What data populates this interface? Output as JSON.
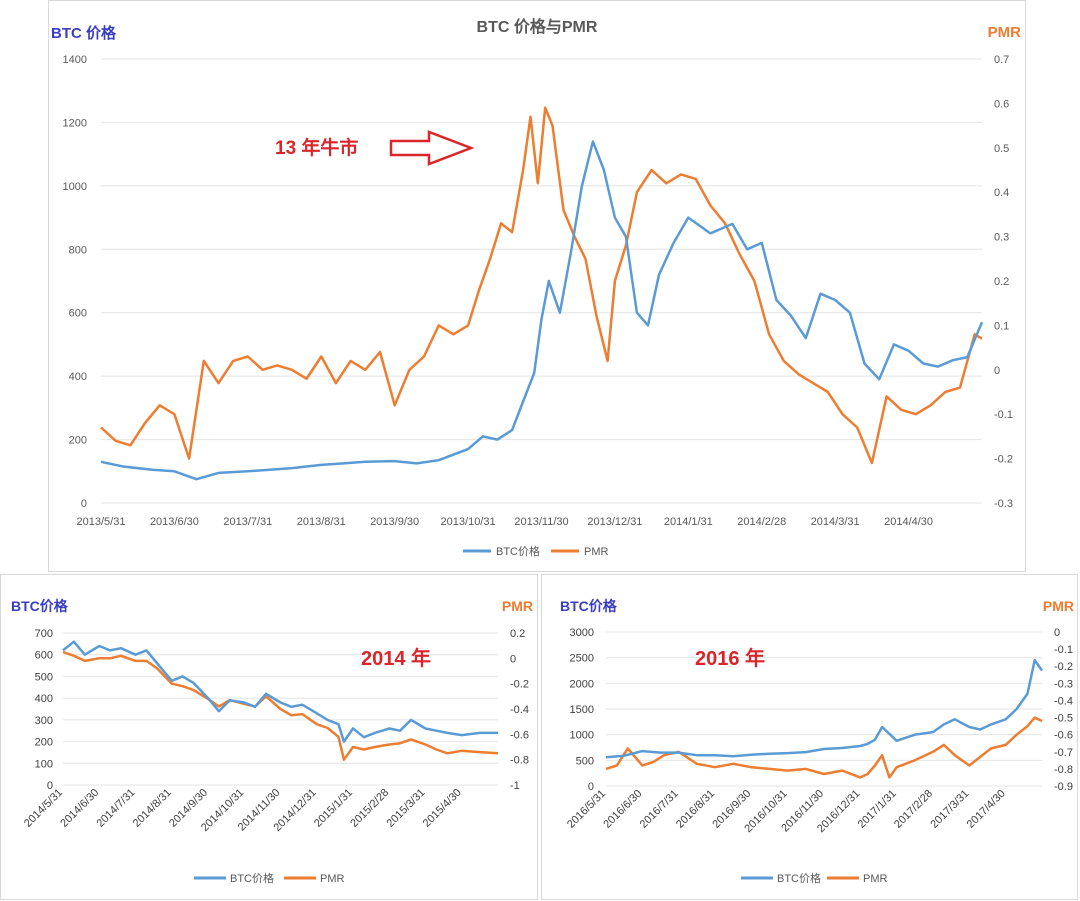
{
  "colors": {
    "btc": "#5b9bd5",
    "pmr": "#ed7d31",
    "left_label": "#3a3fbf",
    "annotation": "#d9262b",
    "grid": "#e4e4e4"
  },
  "chart_data": [
    {
      "type": "line",
      "title": "BTC 价格与PMR",
      "ylabel_left": "BTC 价格",
      "ylabel_right": "PMR",
      "annotation": "13 年牛市",
      "legend_position": "bottom",
      "ylim_left": [
        0,
        1400
      ],
      "ylim_right": [
        -0.3,
        0.7
      ],
      "yticks_left": [
        "0",
        "200",
        "400",
        "600",
        "800",
        "1000",
        "1200",
        "1400"
      ],
      "yticks_right": [
        "-0.3",
        "-0.2",
        "-0.1",
        "0",
        "0.1",
        "0.2",
        "0.3",
        "0.4",
        "0.5",
        "0.6",
        "0.7"
      ],
      "xticks": [
        "2013/5/31",
        "2013/6/30",
        "2013/7/31",
        "2013/8/31",
        "2013/9/30",
        "2013/10/31",
        "2013/11/30",
        "2013/12/31",
        "2014/1/31",
        "2014/2/28",
        "2014/3/31",
        "2014/4/30"
      ],
      "series": [
        {
          "name": "BTC价格",
          "axis": "left",
          "x": [
            0,
            0.3,
            0.7,
            1,
            1.3,
            1.6,
            2,
            2.3,
            2.6,
            3,
            3.3,
            3.6,
            4,
            4.3,
            4.6,
            5,
            5.2,
            5.4,
            5.6,
            5.75,
            5.9,
            6,
            6.1,
            6.25,
            6.4,
            6.55,
            6.7,
            6.85,
            7,
            7.15,
            7.3,
            7.45,
            7.6,
            7.8,
            8,
            8.3,
            8.6,
            8.8,
            9,
            9.2,
            9.4,
            9.6,
            9.8,
            10,
            10.2,
            10.4,
            10.6,
            10.8,
            11,
            11.2,
            11.4,
            11.6,
            11.8,
            12
          ],
          "y": [
            130,
            115,
            105,
            100,
            75,
            95,
            100,
            105,
            110,
            120,
            125,
            130,
            132,
            125,
            135,
            170,
            210,
            200,
            230,
            320,
            410,
            580,
            700,
            600,
            790,
            1000,
            1140,
            1050,
            900,
            840,
            600,
            560,
            720,
            820,
            900,
            850,
            880,
            800,
            820,
            640,
            590,
            520,
            660,
            640,
            600,
            440,
            390,
            500,
            480,
            440,
            430,
            450,
            460,
            570
          ]
        },
        {
          "name": "PMR",
          "axis": "right",
          "x": [
            0,
            0.2,
            0.4,
            0.6,
            0.8,
            1,
            1.2,
            1.4,
            1.6,
            1.8,
            2,
            2.2,
            2.4,
            2.6,
            2.8,
            3,
            3.2,
            3.4,
            3.6,
            3.8,
            4,
            4.2,
            4.4,
            4.6,
            4.8,
            5,
            5.15,
            5.3,
            5.45,
            5.6,
            5.75,
            5.85,
            5.95,
            6.05,
            6.15,
            6.3,
            6.45,
            6.6,
            6.75,
            6.9,
            7,
            7.15,
            7.3,
            7.5,
            7.7,
            7.9,
            8.1,
            8.3,
            8.5,
            8.7,
            8.9,
            9.1,
            9.3,
            9.5,
            9.7,
            9.9,
            10.1,
            10.3,
            10.5,
            10.7,
            10.9,
            11.1,
            11.3,
            11.5,
            11.7,
            11.9,
            12
          ],
          "y": [
            -0.13,
            -0.16,
            -0.17,
            -0.12,
            -0.08,
            -0.1,
            -0.2,
            0.02,
            -0.03,
            0.02,
            0.03,
            0.0,
            0.01,
            0.0,
            -0.02,
            0.03,
            -0.03,
            0.02,
            0.0,
            0.04,
            -0.08,
            0.0,
            0.03,
            0.1,
            0.08,
            0.1,
            0.18,
            0.25,
            0.33,
            0.31,
            0.45,
            0.57,
            0.42,
            0.59,
            0.55,
            0.36,
            0.3,
            0.25,
            0.12,
            0.02,
            0.2,
            0.28,
            0.4,
            0.45,
            0.42,
            0.44,
            0.43,
            0.37,
            0.33,
            0.26,
            0.2,
            0.08,
            0.02,
            -0.01,
            -0.03,
            -0.05,
            -0.1,
            -0.13,
            -0.21,
            -0.06,
            -0.09,
            -0.1,
            -0.08,
            -0.05,
            -0.04,
            0.08,
            0.07
          ]
        }
      ]
    },
    {
      "type": "line",
      "ylabel_left": "BTC价格",
      "ylabel_right": "PMR",
      "annotation": "2014 年",
      "legend_position": "bottom",
      "ylim_left": [
        0,
        700
      ],
      "ylim_right": [
        -1,
        0.2
      ],
      "yticks_left": [
        "0",
        "100",
        "200",
        "300",
        "400",
        "500",
        "600",
        "700"
      ],
      "yticks_right": [
        "-1",
        "-0.8",
        "-0.6",
        "-0.4",
        "-0.2",
        "0",
        "0.2"
      ],
      "xticks": [
        "2014/5/31",
        "2014/6/30",
        "2014/7/31",
        "2014/8/31",
        "2014/9/30",
        "2014/10/31",
        "2014/11/30",
        "2014/12/31",
        "2015/1/31",
        "2015/2/28",
        "2015/3/31",
        "2015/4/30"
      ],
      "series": [
        {
          "name": "BTC价格",
          "axis": "left",
          "x": [
            0,
            0.3,
            0.6,
            1,
            1.3,
            1.6,
            2,
            2.3,
            2.6,
            3,
            3.3,
            3.6,
            4,
            4.3,
            4.6,
            5,
            5.3,
            5.6,
            6,
            6.3,
            6.6,
            7,
            7.3,
            7.6,
            7.75,
            8,
            8.3,
            8.6,
            9,
            9.3,
            9.6,
            10,
            10.3,
            10.6,
            11,
            11.5,
            12
          ],
          "y": [
            620,
            660,
            600,
            640,
            620,
            630,
            600,
            620,
            560,
            480,
            500,
            470,
            400,
            340,
            390,
            380,
            360,
            420,
            380,
            360,
            370,
            330,
            300,
            280,
            200,
            260,
            220,
            240,
            260,
            250,
            300,
            260,
            250,
            240,
            230,
            240,
            240
          ]
        },
        {
          "name": "PMR",
          "axis": "right",
          "x": [
            0,
            0.3,
            0.6,
            1,
            1.3,
            1.6,
            2,
            2.3,
            2.6,
            3,
            3.3,
            3.6,
            4,
            4.3,
            4.6,
            5,
            5.3,
            5.6,
            6,
            6.3,
            6.6,
            7,
            7.3,
            7.6,
            7.75,
            8,
            8.3,
            8.6,
            9,
            9.3,
            9.6,
            10,
            10.3,
            10.6,
            11,
            11.5,
            12
          ],
          "y": [
            0.05,
            0.02,
            -0.02,
            0.0,
            0.0,
            0.02,
            -0.02,
            -0.02,
            -0.08,
            -0.2,
            -0.22,
            -0.25,
            -0.32,
            -0.38,
            -0.33,
            -0.36,
            -0.38,
            -0.3,
            -0.4,
            -0.45,
            -0.44,
            -0.52,
            -0.55,
            -0.62,
            -0.8,
            -0.7,
            -0.72,
            -0.7,
            -0.68,
            -0.67,
            -0.64,
            -0.68,
            -0.72,
            -0.75,
            -0.73,
            -0.74,
            -0.75
          ]
        }
      ]
    },
    {
      "type": "line",
      "ylabel_left": "BTC价格",
      "ylabel_right": "PMR",
      "annotation": "2016 年",
      "legend_position": "bottom",
      "ylim_left": [
        0,
        3000
      ],
      "ylim_right": [
        -0.9,
        0
      ],
      "yticks_left": [
        "0",
        "500",
        "1000",
        "1500",
        "2000",
        "2500",
        "3000"
      ],
      "yticks_right": [
        "-0.9",
        "-0.8",
        "-0.7",
        "-0.6",
        "-0.5",
        "-0.4",
        "-0.3",
        "-0.2",
        "-0.1",
        "0"
      ],
      "xticks": [
        "2016/5/31",
        "2016/6/30",
        "2016/7/31",
        "2016/8/31",
        "2016/9/30",
        "2016/10/31",
        "2016/11/30",
        "2016/12/31",
        "2017/1/31",
        "2017/2/28",
        "2017/3/31",
        "2017/4/30"
      ],
      "series": [
        {
          "name": "BTC价格",
          "axis": "left",
          "x": [
            0,
            0.5,
            1,
            1.5,
            2,
            2.5,
            3,
            3.5,
            4,
            4.5,
            5,
            5.5,
            6,
            6.5,
            7,
            7.2,
            7.4,
            7.6,
            8,
            8.5,
            9,
            9.3,
            9.6,
            10,
            10.3,
            10.6,
            11,
            11.3,
            11.6,
            11.8,
            12
          ],
          "y": [
            560,
            590,
            680,
            650,
            650,
            600,
            600,
            580,
            610,
            630,
            640,
            660,
            720,
            740,
            780,
            820,
            900,
            1150,
            880,
            1000,
            1050,
            1200,
            1300,
            1150,
            1100,
            1200,
            1300,
            1500,
            1800,
            2450,
            2250
          ]
        },
        {
          "name": "PMR",
          "axis": "right",
          "x": [
            0,
            0.3,
            0.6,
            1,
            1.3,
            1.6,
            2,
            2.5,
            3,
            3.5,
            4,
            4.5,
            5,
            5.5,
            6,
            6.5,
            7,
            7.2,
            7.4,
            7.6,
            7.8,
            8,
            8.5,
            9,
            9.3,
            9.6,
            10,
            10.3,
            10.6,
            11,
            11.3,
            11.6,
            11.8,
            12
          ],
          "y": [
            -0.8,
            -0.78,
            -0.68,
            -0.78,
            -0.76,
            -0.72,
            -0.7,
            -0.77,
            -0.79,
            -0.77,
            -0.79,
            -0.8,
            -0.81,
            -0.8,
            -0.83,
            -0.81,
            -0.85,
            -0.83,
            -0.78,
            -0.72,
            -0.85,
            -0.79,
            -0.75,
            -0.7,
            -0.66,
            -0.72,
            -0.78,
            -0.73,
            -0.68,
            -0.66,
            -0.6,
            -0.55,
            -0.5,
            -0.52
          ]
        }
      ]
    }
  ]
}
